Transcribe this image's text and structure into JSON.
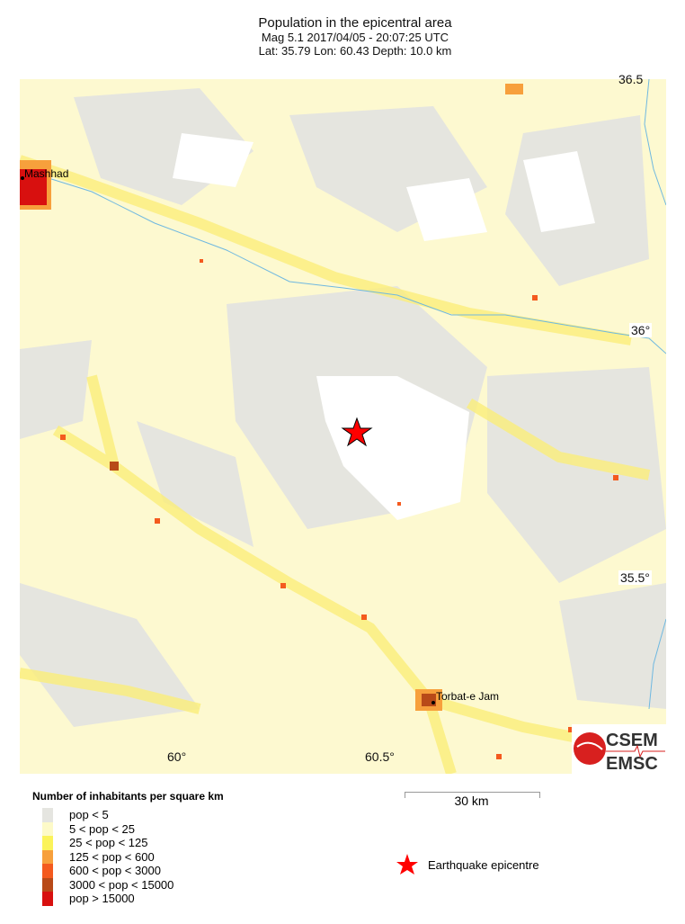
{
  "header": {
    "title": "Population in the epicentral area",
    "subtitle": "Mag 5.1  2017/04/05 - 20:07:25 UTC",
    "location": "Lat: 35.79    Lon:  60.43     Depth:  10.0 km"
  },
  "map": {
    "lat_ticks": [
      "36.5",
      "36°",
      "35.5°"
    ],
    "lon_ticks": [
      "60°",
      "60.5°"
    ],
    "cities": [
      "Mashhad",
      "Torbat-e Jam"
    ],
    "epicentre": {
      "lat": 35.79,
      "lon": 60.43,
      "color": "#ff0000"
    },
    "river_color": "#6fb8e0"
  },
  "legend": {
    "title": "Number of inhabitants per square km",
    "items": [
      {
        "label": "pop < 5",
        "color": "#e5e5e0"
      },
      {
        "label": "5 < pop < 25",
        "color": "#fdfac8"
      },
      {
        "label": "25 < pop < 125",
        "color": "#fbf35a"
      },
      {
        "label": "125 < pop < 600",
        "color": "#f7a03c"
      },
      {
        "label": "600 < pop < 3000",
        "color": "#f45a1e"
      },
      {
        "label": "3000 < pop < 15000",
        "color": "#b84a18"
      },
      {
        "label": "pop > 15000",
        "color": "#d8100f"
      }
    ],
    "scale": "30 km",
    "epicentre_label": "Earthquake epicentre"
  },
  "logo": {
    "line1": "CSEM",
    "line2": "EMSC"
  }
}
